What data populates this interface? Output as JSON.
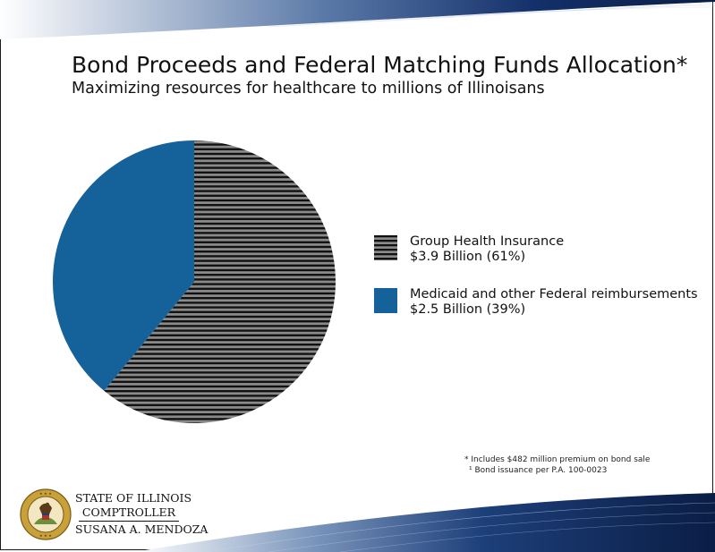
{
  "header": {
    "title": "Bond Proceeds and Federal Matching Funds Allocation*",
    "subtitle": "Maximizing resources for healthcare to millions of Illinoisans"
  },
  "chart_data": {
    "type": "pie",
    "title": "Bond Proceeds and Federal Matching Funds Allocation*",
    "subtitle": "Maximizing resources for healthcare to millions of Illinoisans",
    "slices": [
      {
        "label": "Group Health Insurance",
        "value_text": "$3.9 Billion (61%)",
        "value": 3.9,
        "percent": 61,
        "color": "#6b6b6b",
        "pattern": "horizontal-stripes"
      },
      {
        "label": "Medicaid and other Federal reimbursements",
        "value_text": "$2.5 Billion (39%)",
        "value": 2.5,
        "percent": 39,
        "color": "#15619a",
        "pattern": "solid"
      }
    ],
    "start": "12 o'clock, clockwise",
    "legend_position": "right"
  },
  "footnotes": {
    "note1": "* Includes $482 million premium on bond sale",
    "note2": "¹ Bond issuance per P.A. 100-0023"
  },
  "seal": {
    "line1": "STATE OF ILLINOIS",
    "line2": "COMPTROLLER",
    "line3": "SUSANA A. MENDOZA",
    "icon": "state-seal-icon",
    "seal_lettering": "SEAL OF THE STATE OF ILLINOIS AUG. 26TH 1818"
  },
  "colors": {
    "navy": "#0d2a5c",
    "blue": "#15619a",
    "stripe_dark": "#111111",
    "stripe_light": "#8a8a8a"
  }
}
